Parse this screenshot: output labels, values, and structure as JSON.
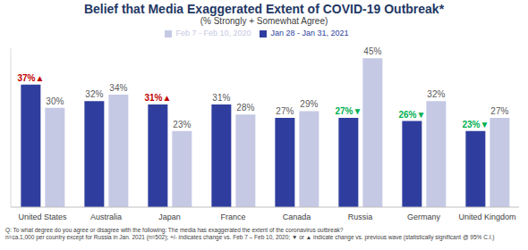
{
  "chart_data": {
    "type": "bar",
    "title": "Belief that Media Exaggerated Extent of COVID-19 Outbreak*",
    "subtitle": "(% Strongly + Somewhat Agree)",
    "categories": [
      "United States",
      "Australia",
      "Japan",
      "France",
      "Canada",
      "Russia",
      "Germany",
      "United Kingdom"
    ],
    "series": [
      {
        "name": "Jan 28 - Jan 31, 2021",
        "color": "#2f3e9e",
        "values": [
          37,
          32,
          31,
          31,
          27,
          27,
          26,
          23
        ],
        "value_labels": [
          "37%▲",
          "32%",
          "31%▲",
          "31%",
          "27%",
          "27%▼",
          "26%▼",
          "23%▼"
        ]
      },
      {
        "name": "Feb 7 - Feb 10, 2020",
        "color": "#c5c9e4",
        "values": [
          30,
          34,
          23,
          28,
          29,
          45,
          32,
          27
        ],
        "value_labels": [
          "30%",
          "34%",
          "23%",
          "28%",
          "29%",
          "45%",
          "32%",
          "27%"
        ]
      }
    ],
    "ylim": [
      0,
      48
    ],
    "yticks": [],
    "tick_labels": "x",
    "data_labels": true,
    "legend": "top",
    "grid": false,
    "annotations": [
      "Q: To what degree do you agree or disagree with the following: The media has exaggerated the extent of the coronavirus outbreak?",
      "n=ca.1,000 per country except for Russia in Jan. 2021 (n=502); +/- indicates change vs. Feb 7 – Feb 10, 2020; ▼ or ▲ indicate change vs. previous wave (statistically significant @ 95% C.I.)"
    ]
  }
}
